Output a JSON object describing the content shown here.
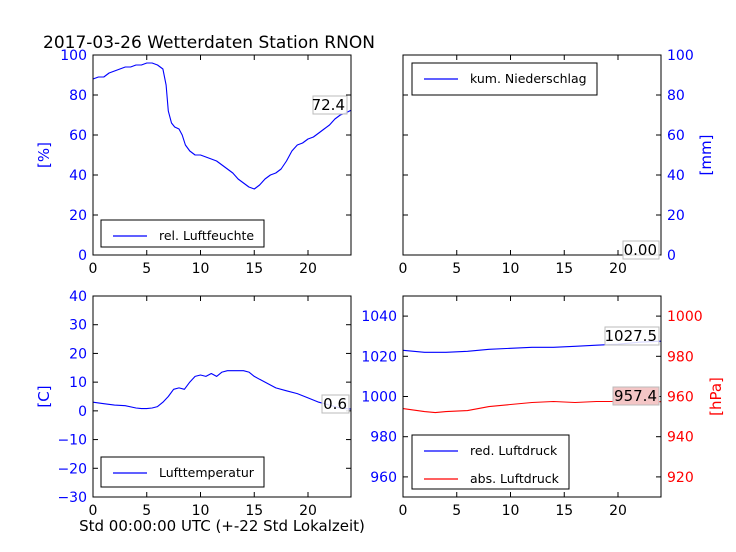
{
  "title": "2017-03-26 Wetterdaten Station RNON",
  "xlabel": "Std 00:00:00 UTC (+-22 Std Lokalzeit)",
  "colors": {
    "blue": "#0000ff",
    "red": "#ff0000",
    "annot_red_bg": "#f4c6c6"
  },
  "chart_data": [
    {
      "type": "line",
      "xlim": [
        0,
        24
      ],
      "xticks": [
        "0",
        "5",
        "10",
        "15",
        "20"
      ],
      "ylim": [
        0,
        100
      ],
      "yticks": [
        "0",
        "20",
        "40",
        "60",
        "80",
        "100"
      ],
      "ylabel": "[%]",
      "legend_position": "bottom-left",
      "annotation": "72.4",
      "series": [
        {
          "name": "rel. Luftfeuchte",
          "color": "#0000ff",
          "x": [
            0,
            0.5,
            1,
            1.5,
            2,
            2.5,
            3,
            3.5,
            4,
            4.5,
            5,
            5.5,
            6,
            6.5,
            6.8,
            7,
            7.3,
            7.6,
            8,
            8.3,
            8.6,
            9,
            9.5,
            10,
            10.5,
            11,
            11.5,
            12,
            12.5,
            13,
            13.5,
            14,
            14.5,
            15,
            15.5,
            16,
            16.5,
            17,
            17.5,
            18,
            18.5,
            19,
            19.5,
            20,
            20.5,
            21,
            21.5,
            22,
            22.5,
            23,
            23.5,
            24
          ],
          "y": [
            88,
            89,
            89,
            91,
            92,
            93,
            94,
            94,
            95,
            95,
            96,
            96,
            95,
            93,
            85,
            72,
            66,
            64,
            63,
            60,
            55,
            52,
            50,
            50,
            49,
            48,
            47,
            45,
            43,
            41,
            38,
            36,
            34,
            33,
            35,
            38,
            40,
            41,
            43,
            47,
            52,
            55,
            56,
            58,
            59,
            61,
            63,
            65,
            68,
            70,
            71,
            72.4
          ]
        }
      ]
    },
    {
      "type": "line",
      "xlim": [
        0,
        24
      ],
      "xticks": [
        "0",
        "5",
        "10",
        "15",
        "20"
      ],
      "ylim": [
        0,
        100
      ],
      "yticks": [
        "0",
        "20",
        "40",
        "60",
        "80",
        "100"
      ],
      "ylabel": "[mm]",
      "y_axis_side": "right",
      "legend_position": "top-left",
      "annotation": "0.00",
      "series": [
        {
          "name": "kum. Niederschlag",
          "color": "#0000ff",
          "x": [
            0,
            6,
            12,
            18,
            24
          ],
          "y": [
            0,
            0,
            0,
            0,
            0
          ]
        }
      ]
    },
    {
      "type": "line",
      "xlim": [
        0,
        24
      ],
      "xticks": [
        "0",
        "5",
        "10",
        "15",
        "20"
      ],
      "ylim": [
        -30,
        40
      ],
      "yticks": [
        "−30",
        "−20",
        "−10",
        "0",
        "10",
        "20",
        "30",
        "40"
      ],
      "ylabel": "[C]",
      "legend_position": "bottom-left",
      "annotation": "0.6",
      "series": [
        {
          "name": "Lufttemperatur",
          "color": "#0000ff",
          "x": [
            0,
            1,
            2,
            3,
            4,
            4.5,
            5,
            5.5,
            6,
            6.5,
            7,
            7.5,
            8,
            8.5,
            9,
            9.5,
            10,
            10.5,
            11,
            11.5,
            12,
            12.5,
            13,
            13.5,
            14,
            14.5,
            15,
            15.5,
            16,
            17,
            18,
            19,
            20,
            21,
            22,
            23,
            24
          ],
          "y": [
            3,
            2.5,
            2,
            1.8,
            1,
            0.8,
            0.8,
            1,
            1.5,
            3,
            5,
            7.5,
            8,
            7.5,
            10,
            12,
            12.5,
            12,
            13,
            12,
            13.5,
            14,
            14,
            14,
            14,
            13.5,
            12,
            11,
            10,
            8,
            7,
            6,
            4.5,
            3,
            2,
            1,
            0.6
          ]
        }
      ]
    },
    {
      "type": "line",
      "xlim": [
        0,
        24
      ],
      "xticks": [
        "0",
        "5",
        "10",
        "15",
        "20"
      ],
      "ylim": [
        950,
        1050
      ],
      "yticks": [
        "960",
        "980",
        "1000",
        "1020",
        "1040"
      ],
      "y2lim": [
        910,
        1010
      ],
      "y2ticks": [
        "920",
        "940",
        "960",
        "980",
        "1000"
      ],
      "y2label": "[hPa]",
      "legend_position": "bottom-left",
      "annotations": [
        "1027.5",
        "957.4"
      ],
      "series": [
        {
          "name": "red. Luftdruck",
          "color": "#0000ff",
          "axis": "left",
          "x": [
            0,
            2,
            4,
            6,
            8,
            10,
            12,
            14,
            16,
            18,
            20,
            22,
            24
          ],
          "y": [
            1023,
            1022,
            1022,
            1022.5,
            1023.5,
            1024,
            1024.5,
            1024.5,
            1025,
            1025.5,
            1026,
            1027,
            1027.5
          ]
        },
        {
          "name": "abs. Luftdruck",
          "color": "#ff0000",
          "axis": "right",
          "x": [
            0,
            2,
            3,
            4,
            6,
            7,
            8,
            10,
            12,
            14,
            16,
            18,
            20,
            22,
            24
          ],
          "y": [
            954,
            952.5,
            952,
            952.5,
            953,
            954,
            955,
            956,
            957,
            957.5,
            957,
            957.5,
            957.5,
            957.4,
            957.4
          ]
        }
      ]
    }
  ]
}
